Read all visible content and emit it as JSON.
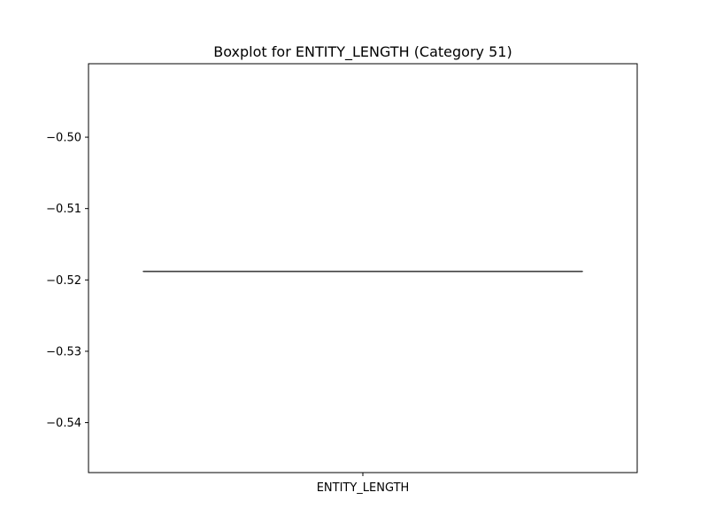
{
  "chart_data": {
    "type": "boxplot",
    "title": "Boxplot for ENTITY_LENGTH (Category 51)",
    "xlabel": "",
    "ylabel": "",
    "categories": [
      "ENTITY_LENGTH"
    ],
    "boxes": [
      {
        "category": "ENTITY_LENGTH",
        "min": -0.5188,
        "q1": -0.5188,
        "median": -0.5188,
        "q3": -0.5188,
        "max": -0.5188
      }
    ],
    "ylim": [
      -0.547,
      -0.4897
    ],
    "yticks": [
      -0.5,
      -0.51,
      -0.52,
      -0.53,
      -0.54
    ],
    "ytick_labels": [
      "−0.50",
      "−0.51",
      "−0.52",
      "−0.53",
      "−0.54"
    ],
    "grid": false,
    "colors": {
      "box_line": "#3f3f3f",
      "axes": "#000000"
    }
  }
}
